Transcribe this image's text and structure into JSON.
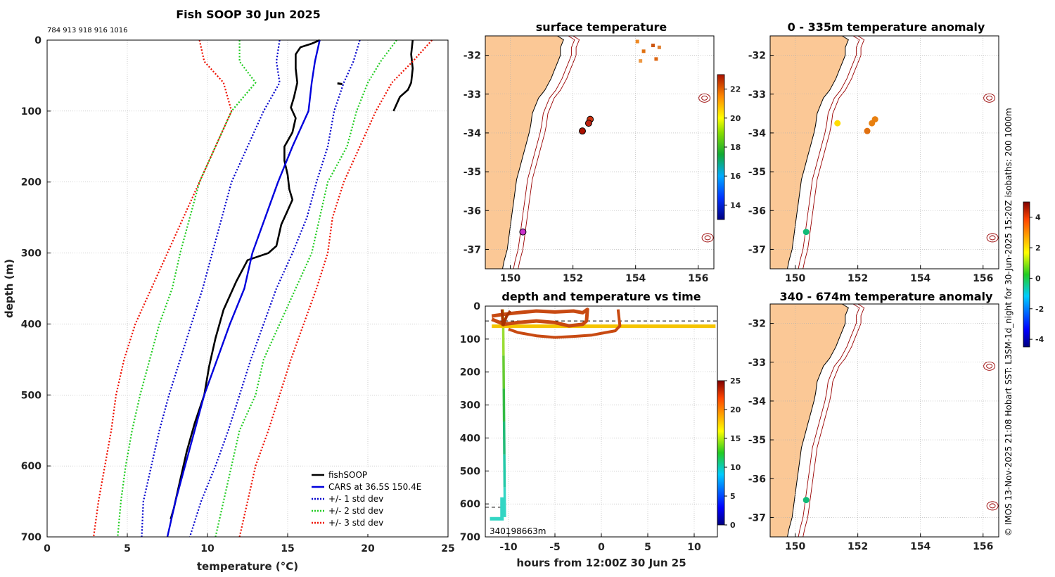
{
  "chart_data": [
    {
      "id": "profile",
      "type": "line",
      "title": "Fish SOOP 30 Jun 2025",
      "subtitle": "784 913 918 916 1016",
      "xlabel": "temperature (°C)",
      "ylabel": "depth (m)",
      "xlim": [
        0,
        25
      ],
      "ylim": [
        700,
        0
      ],
      "xticks": [
        "0",
        "5",
        "10",
        "15",
        "20",
        "25"
      ],
      "yticks": [
        "0",
        "100",
        "200",
        "300",
        "400",
        "500",
        "600",
        "700"
      ],
      "legend": [
        "fishSOOP",
        "CARS at 36.5S 150.4E",
        "+/- 1 std dev",
        "+/- 2 std dev",
        "+/- 3 std dev"
      ],
      "legend_position": "bottom-right",
      "colors": {
        "fish": "#000000",
        "cars": "#0000dd",
        "sd1": "#0000cc",
        "sd2": "#22cc22",
        "sd3": "#ee1100"
      },
      "series": [
        {
          "name": "fishSOOP",
          "depth": [
            0,
            5,
            10,
            20,
            40,
            60,
            80,
            95,
            110,
            130,
            150,
            170,
            190,
            210,
            225,
            240,
            260,
            280,
            290,
            300,
            310,
            340,
            380,
            420,
            460,
            500,
            540,
            580,
            620,
            660,
            675
          ],
          "values": [
            17,
            16.5,
            15.8,
            15.5,
            15.5,
            15.6,
            15.4,
            15.2,
            15.5,
            15.3,
            14.8,
            14.8,
            15.0,
            15.1,
            15.3,
            15.0,
            14.6,
            14.4,
            14.3,
            13.8,
            12.5,
            11.8,
            11.0,
            10.5,
            10.1,
            9.8,
            9.2,
            8.7,
            8.3,
            7.9,
            7.7
          ]
        },
        {
          "name": "fishSOOP cast 2",
          "depth": [
            0,
            20,
            40,
            60,
            70,
            80,
            90,
            100
          ],
          "values": [
            22.8,
            22.7,
            22.8,
            22.7,
            22.5,
            22.0,
            21.8,
            21.6
          ]
        },
        {
          "name": "CARS at 36.5S 150.4E",
          "depth": [
            0,
            30,
            60,
            100,
            150,
            200,
            250,
            300,
            350,
            400,
            450,
            500,
            550,
            600,
            650,
            700
          ],
          "values": [
            17.0,
            16.7,
            16.5,
            16.3,
            15.3,
            14.4,
            13.6,
            12.8,
            12.3,
            11.4,
            10.6,
            9.8,
            9.2,
            8.6,
            8.0,
            7.5
          ]
        },
        {
          "name": "CARS -1 std dev",
          "depth": [
            0,
            30,
            60,
            100,
            150,
            200,
            250,
            300,
            350,
            400,
            450,
            500,
            550,
            600,
            650,
            700
          ],
          "values": [
            14.5,
            14.3,
            14.5,
            13.5,
            12.5,
            11.5,
            10.9,
            10.3,
            9.7,
            9.0,
            8.3,
            7.6,
            7.0,
            6.5,
            6.0,
            5.9
          ]
        },
        {
          "name": "CARS +1 std dev",
          "depth": [
            0,
            30,
            60,
            100,
            150,
            200,
            250,
            300,
            350,
            400,
            450,
            500,
            550,
            600,
            650,
            700
          ],
          "values": [
            19.5,
            19.1,
            18.5,
            17.9,
            17.5,
            16.8,
            16.2,
            15.3,
            14.3,
            13.5,
            12.7,
            12.0,
            11.3,
            10.5,
            9.6,
            8.9
          ]
        },
        {
          "name": "CARS -2 std dev",
          "depth": [
            0,
            30,
            60,
            100,
            150,
            200,
            250,
            300,
            350,
            400,
            450,
            500,
            550,
            600,
            650,
            700
          ],
          "values": [
            12.0,
            12.0,
            13.0,
            11.5,
            10.5,
            9.5,
            8.9,
            8.3,
            7.8,
            7.0,
            6.4,
            5.8,
            5.3,
            4.9,
            4.6,
            4.4
          ]
        },
        {
          "name": "CARS +2 std dev",
          "depth": [
            0,
            30,
            60,
            100,
            150,
            200,
            250,
            300,
            350,
            400,
            450,
            500,
            550,
            600,
            650,
            700
          ],
          "values": [
            21.8,
            20.8,
            20.0,
            19.3,
            18.7,
            17.5,
            17.0,
            16.5,
            15.5,
            14.5,
            13.5,
            13.0,
            12.0,
            11.5,
            11.0,
            10.5
          ]
        },
        {
          "name": "CARS -3 std dev",
          "depth": [
            0,
            30,
            60,
            100,
            150,
            200,
            250,
            300,
            350,
            400,
            450,
            500,
            550,
            600,
            650,
            700
          ],
          "values": [
            9.5,
            9.8,
            11.0,
            11.5,
            10.5,
            9.5,
            8.5,
            7.5,
            6.5,
            5.5,
            4.8,
            4.3,
            4.0,
            3.6,
            3.2,
            2.9
          ]
        },
        {
          "name": "CARS +3 std dev",
          "depth": [
            0,
            30,
            60,
            100,
            150,
            200,
            250,
            300,
            350,
            400,
            450,
            500,
            550,
            600,
            650,
            700
          ],
          "values": [
            24.0,
            22.8,
            21.5,
            20.5,
            19.5,
            18.5,
            17.8,
            17.5,
            16.8,
            16.0,
            15.2,
            14.5,
            13.8,
            13.0,
            12.5,
            12.0
          ]
        }
      ]
    },
    {
      "id": "map-sst",
      "type": "map",
      "title": "surface temperature",
      "xlim": [
        149.2,
        156.5
      ],
      "ylim": [
        -37.5,
        -31.5
      ],
      "xticks": [
        "150",
        "152",
        "154",
        "156"
      ],
      "yticks": [
        "-32",
        "-33",
        "-34",
        "-35",
        "-36",
        "-37"
      ],
      "colorbar": {
        "min": 13,
        "max": 23,
        "ticks": [
          "14",
          "16",
          "18",
          "20",
          "22"
        ]
      },
      "points": [
        {
          "lon": 152.55,
          "lat": -33.65,
          "color": "#cc3311"
        },
        {
          "lon": 152.5,
          "lat": -33.75,
          "color": "#bb2211"
        },
        {
          "lon": 152.3,
          "lat": -33.95,
          "color": "#aa1100"
        },
        {
          "lon": 150.4,
          "lat": -36.55,
          "color": "#cc33cc"
        }
      ]
    },
    {
      "id": "map-anom-top",
      "type": "map",
      "title": "0 - 335m temperature anomaly",
      "xlim": [
        149.2,
        156.5
      ],
      "ylim": [
        -37.5,
        -31.5
      ],
      "xticks": [
        "150",
        "152",
        "154",
        "156"
      ],
      "yticks": [
        "-32",
        "-33",
        "-34",
        "-35",
        "-36",
        "-37"
      ],
      "points": [
        {
          "lon": 151.35,
          "lat": -33.75,
          "color": "#ffdd00"
        },
        {
          "lon": 152.55,
          "lat": -33.65,
          "color": "#e88010"
        },
        {
          "lon": 152.45,
          "lat": -33.75,
          "color": "#e88010"
        },
        {
          "lon": 152.3,
          "lat": -33.95,
          "color": "#e07010"
        },
        {
          "lon": 150.35,
          "lat": -36.55,
          "color": "#11bb77"
        }
      ]
    },
    {
      "id": "map-anom-bottom",
      "type": "map",
      "title": "340 - 674m temperature anomaly",
      "xlim": [
        149.2,
        156.5
      ],
      "ylim": [
        -37.5,
        -31.5
      ],
      "xticks": [
        "150",
        "152",
        "154",
        "156"
      ],
      "yticks": [
        "-32",
        "-33",
        "-34",
        "-35",
        "-36",
        "-37"
      ],
      "points": [
        {
          "lon": 150.35,
          "lat": -36.55,
          "color": "#11bb77"
        }
      ]
    },
    {
      "id": "anom-colorbar",
      "type": "colorbar",
      "min": -4.5,
      "max": 5,
      "ticks": [
        "-4",
        "-2",
        "0",
        "2",
        "4"
      ]
    },
    {
      "id": "depth-time",
      "type": "scatter",
      "title": "depth and temperature vs time",
      "xlabel": "hours from 12:00Z 30 Jun 25",
      "xlim": [
        -12.5,
        12.5
      ],
      "ylim": [
        700,
        0
      ],
      "xticks": [
        "-10",
        "-5",
        "0",
        "5",
        "10"
      ],
      "yticks": [
        "0",
        "100",
        "200",
        "300",
        "400",
        "500",
        "600",
        "700"
      ],
      "annotation": "340198663m",
      "colorbar": {
        "min": 0,
        "max": 25,
        "ticks": [
          "0",
          "5",
          "10",
          "15",
          "20",
          "25"
        ]
      },
      "dashed_depths": [
        45,
        610
      ]
    }
  ],
  "side_text": "© IMOS 13-Nov-2025 21:08 Hobart SST: L3SM-1d_night for 30-Jun-2025 15:20Z isobaths: 200  1000m"
}
